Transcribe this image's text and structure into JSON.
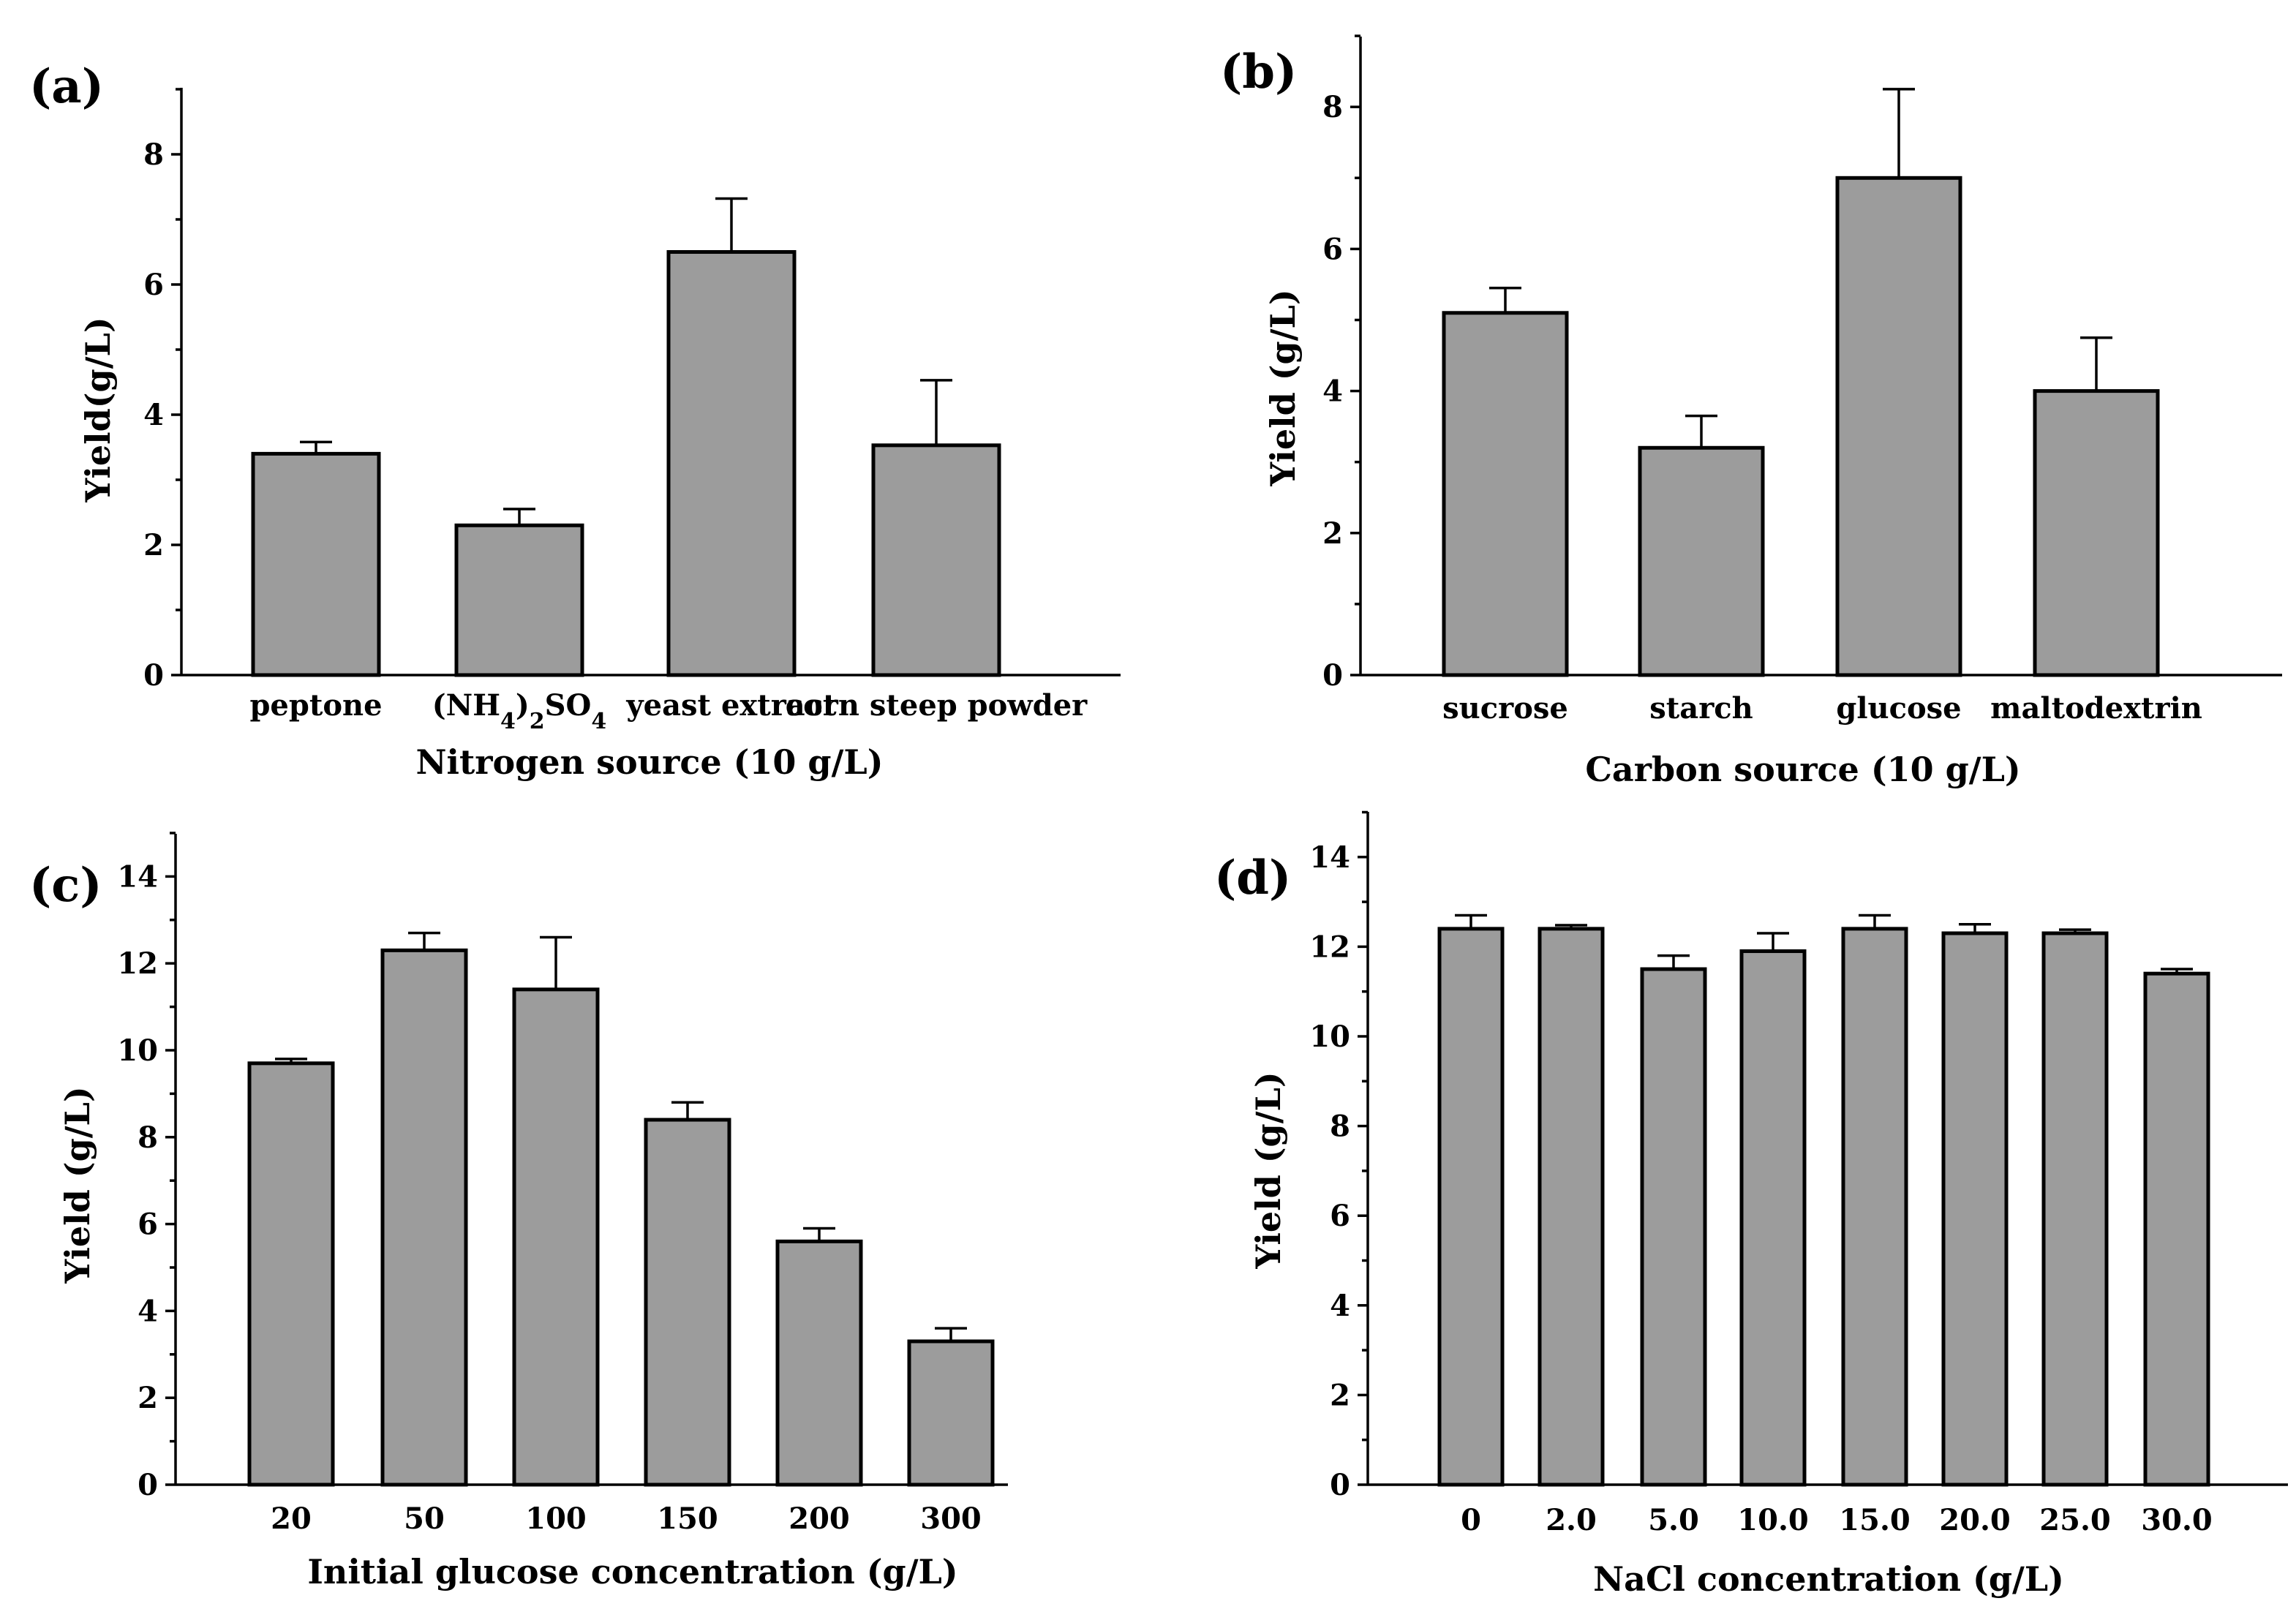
{
  "chart_data": [
    {
      "panel": "(a)",
      "type": "bar",
      "categories": [
        "peptone",
        "(NH4)2SO4",
        "yeast extract",
        "corn steep powder"
      ],
      "values": [
        3.4,
        2.3,
        6.5,
        3.53
      ],
      "errors": [
        0.18,
        0.25,
        0.82,
        1.0
      ],
      "xlabel": "Nitrogen source (10 g/L)",
      "ylabel": "Yield(g/L)",
      "ylim": [
        0,
        9
      ],
      "yticks": [
        0,
        2,
        4,
        6,
        8
      ]
    },
    {
      "panel": "(b)",
      "type": "bar",
      "categories": [
        "sucrose",
        "starch",
        "glucose",
        "maltodextrin"
      ],
      "values": [
        5.1,
        3.2,
        7.0,
        4.0
      ],
      "errors": [
        0.35,
        0.45,
        1.25,
        0.75
      ],
      "xlabel": "Carbon source (10 g/L)",
      "ylabel": "Yield (g/L)",
      "ylim": [
        0,
        9
      ],
      "yticks": [
        0,
        2,
        4,
        6,
        8
      ]
    },
    {
      "panel": "(c)",
      "type": "bar",
      "categories": [
        "20",
        "50",
        "100",
        "150",
        "200",
        "300"
      ],
      "values": [
        9.7,
        12.3,
        11.4,
        8.4,
        5.6,
        3.3
      ],
      "errors": [
        0.1,
        0.4,
        1.2,
        0.4,
        0.3,
        0.3
      ],
      "xlabel": "Initial glucose concentration (g/L)",
      "ylabel": "Yield (g/L)",
      "ylim": [
        0,
        15
      ],
      "yticks": [
        0,
        2,
        4,
        6,
        8,
        10,
        12,
        14
      ]
    },
    {
      "panel": "(d)",
      "type": "bar",
      "categories": [
        "0",
        "2.0",
        "5.0",
        "10.0",
        "15.0",
        "20.0",
        "25.0",
        "30.0"
      ],
      "values": [
        12.4,
        12.4,
        11.5,
        11.9,
        12.4,
        12.3,
        12.3,
        11.4
      ],
      "errors": [
        0.3,
        0.08,
        0.3,
        0.4,
        0.3,
        0.2,
        0.08,
        0.1
      ],
      "xlabel": "NaCl concentration (g/L)",
      "ylabel": "Yield (g/L)",
      "ylim": [
        0,
        15
      ],
      "yticks": [
        0,
        2,
        4,
        6,
        8,
        10,
        12,
        14
      ]
    }
  ]
}
